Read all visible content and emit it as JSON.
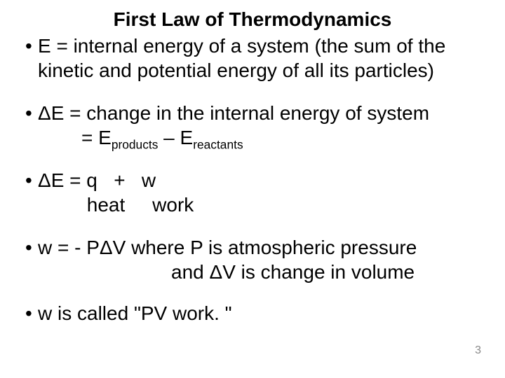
{
  "typography": {
    "title_fontsize_pt": 21,
    "body_fontsize_pt": 21,
    "font_family": "Arial",
    "title_weight": "bold",
    "body_weight": "normal",
    "text_color": "#000000",
    "pagenum_color": "#888888",
    "background_color": "#ffffff"
  },
  "title": "First Law of Thermodynamics",
  "bullets": {
    "b1": "E = internal energy of a system (the sum of the kinetic and potential energy of all its particles)",
    "b2_line1": "ΔE = change in the internal energy of system",
    "b2_line2_pre": "= E",
    "b2_line2_sub1": "products",
    "b2_line2_mid": " – E",
    "b2_line2_sub2": "reactants",
    "b3_line1": "ΔE = q   +   w",
    "b3_line2": " heat     work",
    "b4_line1": "w = - PΔV where P is atmospheric pressure",
    "b4_line2": "and ΔV is change in volume",
    "b5": "w is called \"PV work. \""
  },
  "page_number": "3"
}
